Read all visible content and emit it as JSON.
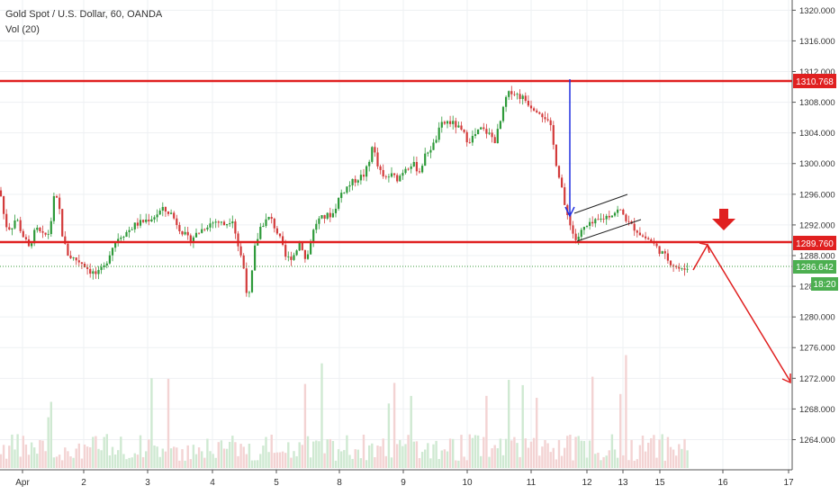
{
  "header": {
    "symbol_title": "Gold Spot / U.S. Dollar, 60, OANDA",
    "volume_label": "Vol (20)"
  },
  "chart_data": {
    "type": "candlestick",
    "title": "Gold Spot / U.S. Dollar, 60, OANDA",
    "price_axis": {
      "range": [
        1260,
        1322
      ],
      "ticks": [
        "1320.000",
        "1316.000",
        "1312.000",
        "1308.000",
        "1304.000",
        "1300.000",
        "1296.000",
        "1292.000",
        "1288.000",
        "1284.000",
        "1280.000",
        "1276.000",
        "1272.000",
        "1268.000",
        "1264.000"
      ]
    },
    "time_axis": {
      "ticks": [
        "Apr",
        "2",
        "3",
        "4",
        "5",
        "8",
        "9",
        "10",
        "11",
        "12",
        "13",
        "15",
        "16",
        "17"
      ]
    },
    "labels": {
      "resistance": "1310.768",
      "support": "1289.760",
      "last_price": "1286.642",
      "countdown": "18:20"
    },
    "levels": {
      "resistance": 1310.768,
      "support": 1289.76,
      "last_price": 1286.642
    },
    "price_path": [
      [
        0,
        1296.5
      ],
      [
        6,
        1292.0
      ],
      [
        12,
        1291.5
      ],
      [
        18,
        1293.0
      ],
      [
        24,
        1291.0
      ],
      [
        32,
        1289.0
      ],
      [
        40,
        1291.5
      ],
      [
        48,
        1290.5
      ],
      [
        55,
        1291.0
      ],
      [
        60,
        1295.5
      ],
      [
        65,
        1295.0
      ],
      [
        70,
        1290.0
      ],
      [
        76,
        1288.0
      ],
      [
        84,
        1287.5
      ],
      [
        92,
        1287.0
      ],
      [
        100,
        1286.0
      ],
      [
        108,
        1285.5
      ],
      [
        116,
        1286.5
      ],
      [
        124,
        1289.0
      ],
      [
        132,
        1290.5
      ],
      [
        140,
        1291.0
      ],
      [
        150,
        1292.0
      ],
      [
        160,
        1292.5
      ],
      [
        170,
        1293.0
      ],
      [
        180,
        1294.0
      ],
      [
        190,
        1293.5
      ],
      [
        200,
        1291.5
      ],
      [
        210,
        1290.0
      ],
      [
        220,
        1291.0
      ],
      [
        230,
        1292.0
      ],
      [
        240,
        1292.5
      ],
      [
        250,
        1292.0
      ],
      [
        258,
        1293.0
      ],
      [
        265,
        1289.0
      ],
      [
        270,
        1287.0
      ],
      [
        275,
        1282.5
      ],
      [
        278,
        1283.0
      ],
      [
        282,
        1288.5
      ],
      [
        290,
        1292.0
      ],
      [
        300,
        1293.0
      ],
      [
        310,
        1290.5
      ],
      [
        318,
        1287.5
      ],
      [
        326,
        1288.0
      ],
      [
        334,
        1290.0
      ],
      [
        340,
        1287.0
      ],
      [
        346,
        1290.5
      ],
      [
        352,
        1292.5
      ],
      [
        360,
        1293.0
      ],
      [
        370,
        1293.5
      ],
      [
        378,
        1296.0
      ],
      [
        386,
        1297.0
      ],
      [
        396,
        1298.0
      ],
      [
        404,
        1298.5
      ],
      [
        410,
        1300.0
      ],
      [
        414,
        1303.0
      ],
      [
        418,
        1300.0
      ],
      [
        426,
        1298.0
      ],
      [
        434,
        1298.5
      ],
      [
        442,
        1298.0
      ],
      [
        450,
        1299.5
      ],
      [
        458,
        1300.0
      ],
      [
        466,
        1299.0
      ],
      [
        474,
        1301.5
      ],
      [
        482,
        1302.5
      ],
      [
        490,
        1305.0
      ],
      [
        498,
        1305.5
      ],
      [
        506,
        1305.0
      ],
      [
        514,
        1304.0
      ],
      [
        520,
        1303.0
      ],
      [
        526,
        1303.5
      ],
      [
        534,
        1304.5
      ],
      [
        542,
        1304.0
      ],
      [
        550,
        1303.0
      ],
      [
        556,
        1305.5
      ],
      [
        562,
        1308.5
      ],
      [
        568,
        1309.5
      ],
      [
        574,
        1309.0
      ],
      [
        582,
        1308.5
      ],
      [
        590,
        1307.5
      ],
      [
        598,
        1307.0
      ],
      [
        606,
        1306.0
      ],
      [
        612,
        1304.5
      ],
      [
        618,
        1300.0
      ],
      [
        624,
        1297.0
      ],
      [
        628,
        1293.5
      ],
      [
        632,
        1293.0
      ],
      [
        636,
        1291.0
      ],
      [
        640,
        1290.0
      ],
      [
        648,
        1291.5
      ],
      [
        656,
        1292.0
      ],
      [
        664,
        1292.5
      ],
      [
        672,
        1293.0
      ],
      [
        680,
        1293.5
      ],
      [
        688,
        1294.0
      ],
      [
        694,
        1293.0
      ],
      [
        700,
        1292.0
      ],
      [
        706,
        1291.5
      ],
      [
        714,
        1290.5
      ],
      [
        722,
        1290.0
      ],
      [
        730,
        1289.0
      ],
      [
        738,
        1288.0
      ],
      [
        746,
        1287.0
      ],
      [
        752,
        1286.5
      ],
      [
        758,
        1286.0
      ],
      [
        764,
        1286.6
      ]
    ]
  }
}
